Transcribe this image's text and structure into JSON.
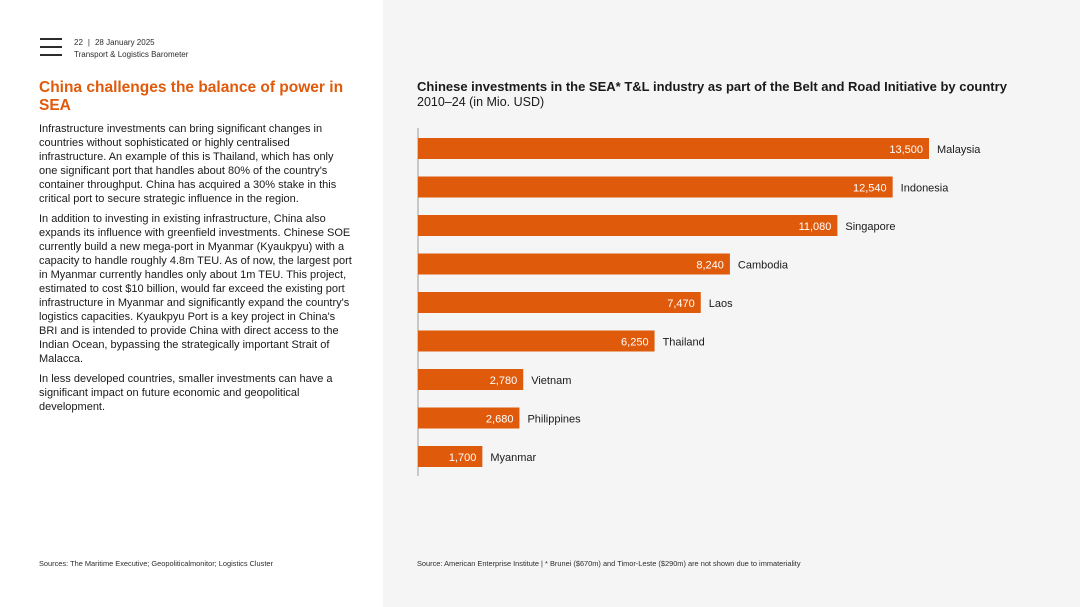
{
  "header": {
    "page_number": "22",
    "separator": "|",
    "date": "28 January 2025",
    "publication": "Transport & Logistics Barometer",
    "menu_icon": "hamburger-menu-icon"
  },
  "article": {
    "heading": "China challenges the balance of power in SEA",
    "paragraphs": [
      "Infrastructure investments can bring significant changes in countries without sophisticated or highly centralised infrastructure. An example of this is Thailand, which has only one significant port that handles about 80% of the country's container throughput. China has acquired a 30% stake in this critical port to secure strategic influence in the region.",
      "In addition to investing in existing infrastructure, China also expands its influence with greenfield investments. Chinese SOE currently build a new mega-port in Myanmar (Kyaukpyu) with a capacity to handle roughly 4.8m TEU. As of now, the largest port in Myanmar currently handles only about 1m TEU. This project, estimated to cost $10 billion, would far exceed the existing port infrastructure in Myanmar and significantly expand the country's logistics capacities. Kyaukpyu Port is a key project in China's BRI and is intended to provide China with direct access to the Indian Ocean, bypassing the strategically important Strait of Malacca.",
      "In less developed countries, smaller investments can have a significant impact on future economic and geopolitical development."
    ],
    "sources": "Sources: The Maritime Executive; Geopoliticalmonitor; Logistics Cluster"
  },
  "chart_data": {
    "type": "bar",
    "orientation": "horizontal",
    "title": "Chinese investments in the SEA* T&L industry as part of the Belt and Road Initiative by country",
    "subtitle": "2010–24 (in Mio. USD)",
    "categories": [
      "Malaysia",
      "Indonesia",
      "Singapore",
      "Cambodia",
      "Laos",
      "Thailand",
      "Vietnam",
      "Philippines",
      "Myanmar"
    ],
    "values": [
      13500,
      12540,
      11080,
      8240,
      7470,
      6250,
      2780,
      2680,
      1700
    ],
    "value_labels": [
      "13,500",
      "12,540",
      "11,080",
      "8,240",
      "7,470",
      "6,250",
      "2,780",
      "2,680",
      "1,700"
    ],
    "xlim": [
      0,
      13500
    ],
    "bar_color": "#e05a0c",
    "grid": false,
    "source": "Source: American Enterprise Institute | * Brunei ($670m) and Timor-Leste ($290m) are not shown due to immateriality"
  },
  "colors": {
    "accent": "#e05a0c",
    "right_background": "#f5f5f5"
  }
}
